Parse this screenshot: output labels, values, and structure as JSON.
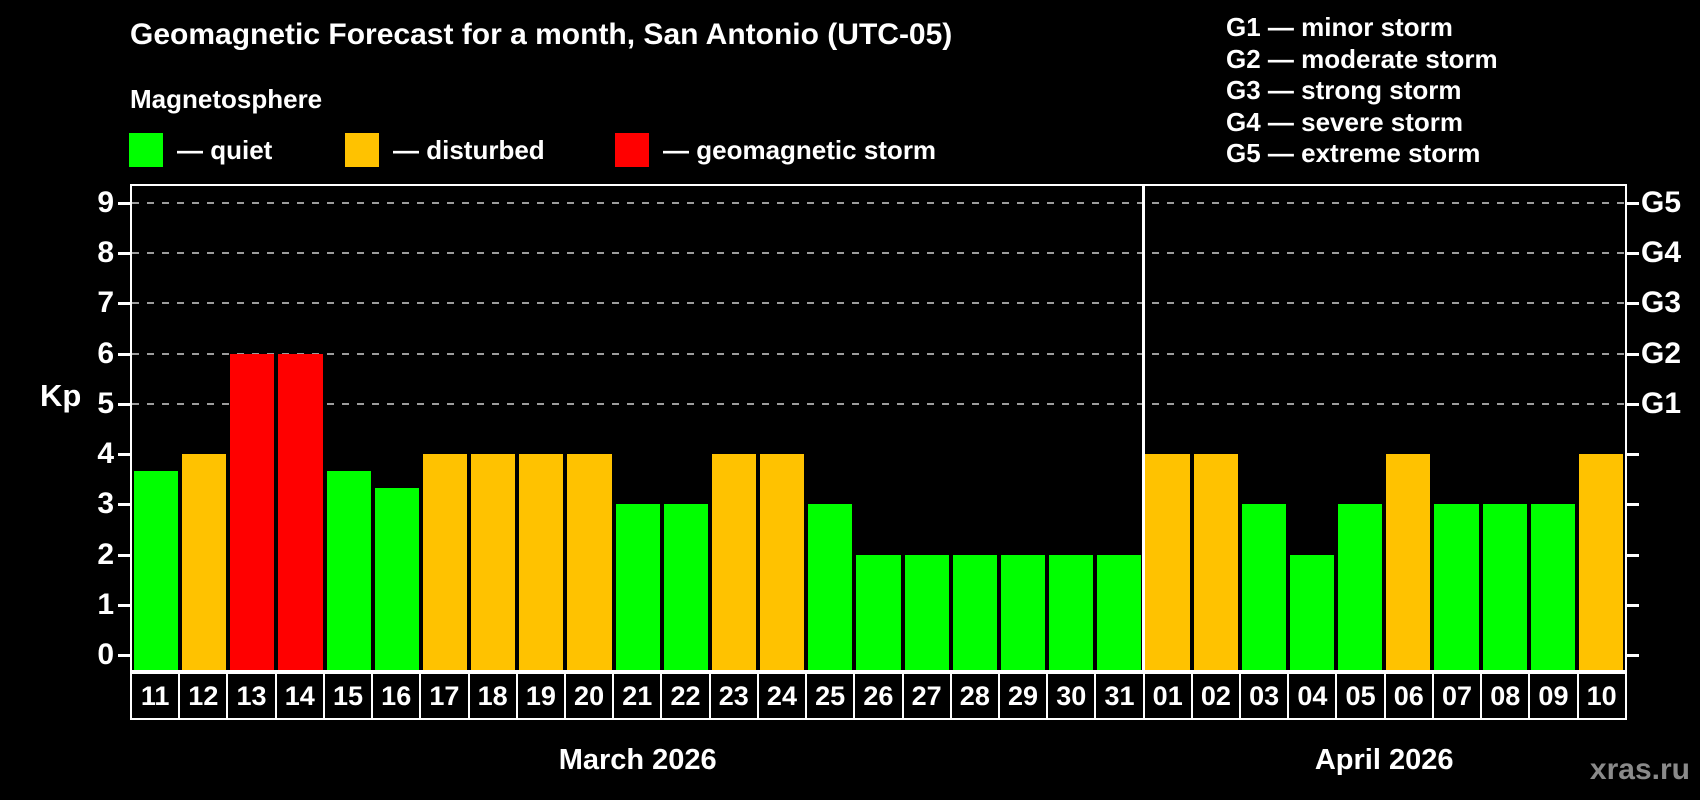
{
  "title": "Geomagnetic Forecast for a month, San Antonio (UTC-05)",
  "legend": {
    "heading": "Magnetosphere",
    "items": [
      {
        "label": "— quiet",
        "status": "quiet"
      },
      {
        "label": "— disturbed",
        "status": "disturbed"
      },
      {
        "label": "— geomagnetic storm",
        "status": "storm"
      }
    ]
  },
  "storm_scale_legend": [
    "G1 — minor storm",
    "G2 — moderate storm",
    "G3 — strong storm",
    "G4 — severe storm",
    "G5 — extreme storm"
  ],
  "watermark": "xras.ru",
  "colors": {
    "quiet": "#00ff00",
    "disturbed": "#ffc200",
    "storm": "#ff0000",
    "axis_text": "#ffffff",
    "gridline": "#9c9c9c",
    "watermark_gray": "#8a8a8a"
  },
  "chart_data": {
    "type": "bar",
    "title": "Geomagnetic Forecast for a month, San Antonio (UTC-05)",
    "ylabel": "Kp",
    "ylim": [
      0,
      9
    ],
    "yticks": [
      0,
      1,
      2,
      3,
      4,
      5,
      6,
      7,
      8,
      9
    ],
    "gridlines_at_kp": [
      5,
      6,
      7,
      8,
      9
    ],
    "grid": "dashed horizontal at G-storm levels only",
    "legend_position": "top-left",
    "right_axis": [
      {
        "label": "G1",
        "kp": 5
      },
      {
        "label": "G2",
        "kp": 6
      },
      {
        "label": "G3",
        "kp": 7
      },
      {
        "label": "G4",
        "kp": 8
      },
      {
        "label": "G5",
        "kp": 9
      }
    ],
    "months": [
      {
        "label": "March 2026",
        "days": [
          {
            "date": "11",
            "kp": 3.67,
            "status": "quiet"
          },
          {
            "date": "12",
            "kp": 4,
            "status": "disturbed"
          },
          {
            "date": "13",
            "kp": 6,
            "status": "storm"
          },
          {
            "date": "14",
            "kp": 6,
            "status": "storm"
          },
          {
            "date": "15",
            "kp": 3.67,
            "status": "quiet"
          },
          {
            "date": "16",
            "kp": 3.33,
            "status": "quiet"
          },
          {
            "date": "17",
            "kp": 4,
            "status": "disturbed"
          },
          {
            "date": "18",
            "kp": 4,
            "status": "disturbed"
          },
          {
            "date": "19",
            "kp": 4,
            "status": "disturbed"
          },
          {
            "date": "20",
            "kp": 4,
            "status": "disturbed"
          },
          {
            "date": "21",
            "kp": 3,
            "status": "quiet"
          },
          {
            "date": "22",
            "kp": 3,
            "status": "quiet"
          },
          {
            "date": "23",
            "kp": 4,
            "status": "disturbed"
          },
          {
            "date": "24",
            "kp": 4,
            "status": "disturbed"
          },
          {
            "date": "25",
            "kp": 3,
            "status": "quiet"
          },
          {
            "date": "26",
            "kp": 2,
            "status": "quiet"
          },
          {
            "date": "27",
            "kp": 2,
            "status": "quiet"
          },
          {
            "date": "28",
            "kp": 2,
            "status": "quiet"
          },
          {
            "date": "29",
            "kp": 2,
            "status": "quiet"
          },
          {
            "date": "30",
            "kp": 2,
            "status": "quiet"
          },
          {
            "date": "31",
            "kp": 2,
            "status": "quiet"
          }
        ]
      },
      {
        "label": "April 2026",
        "days": [
          {
            "date": "01",
            "kp": 4,
            "status": "disturbed"
          },
          {
            "date": "02",
            "kp": 4,
            "status": "disturbed"
          },
          {
            "date": "03",
            "kp": 3,
            "status": "quiet"
          },
          {
            "date": "04",
            "kp": 2,
            "status": "quiet"
          },
          {
            "date": "05",
            "kp": 3,
            "status": "quiet"
          },
          {
            "date": "06",
            "kp": 4,
            "status": "disturbed"
          },
          {
            "date": "07",
            "kp": 3,
            "status": "quiet"
          },
          {
            "date": "08",
            "kp": 3,
            "status": "quiet"
          },
          {
            "date": "09",
            "kp": 3,
            "status": "quiet"
          },
          {
            "date": "10",
            "kp": 4,
            "status": "disturbed"
          }
        ]
      }
    ]
  }
}
